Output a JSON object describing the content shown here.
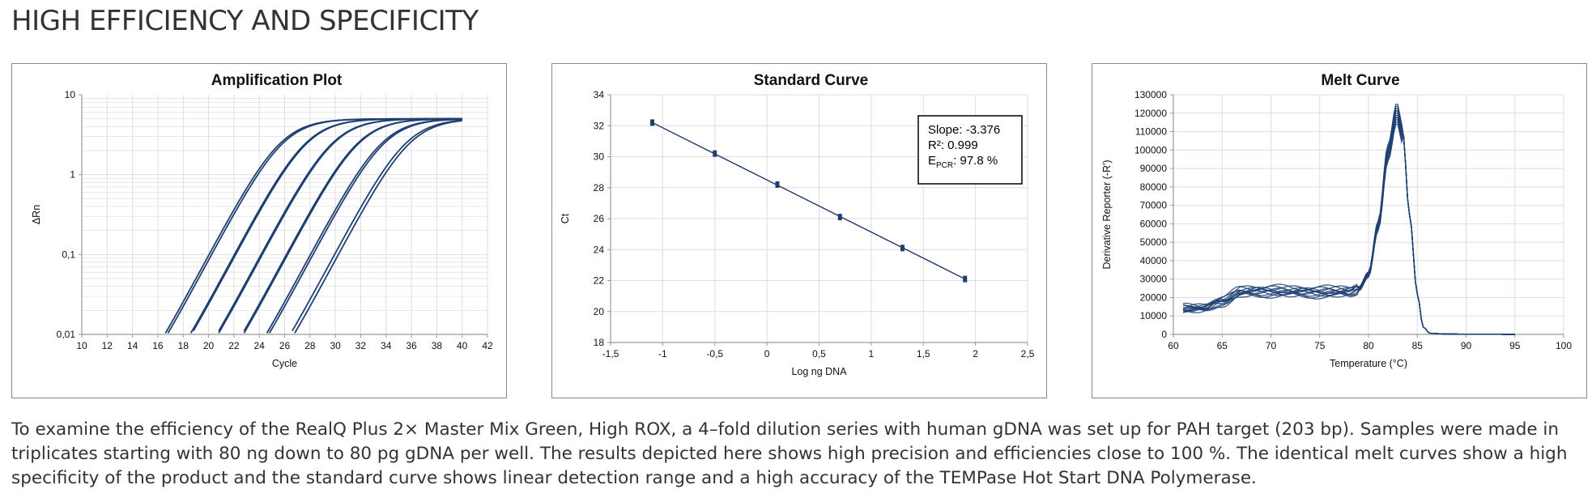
{
  "page": {
    "heading": "HIGH EFFICIENCY AND SPECIFICITY",
    "caption": "To examine the efficiency of the RealQ Plus 2× Master Mix Green, High ROX, a 4–fold dilution series with human gDNA was set up for PAH target (203 bp). Samples were made in triplicates starting with 80 ng down to 80 pg gDNA per well. The results depicted here shows high precision and efficiencies close to 100 %. The identical melt curves show a high specificity of the product and the standard curve shows linear detection range and a high accuracy of the TEMPase Hot Start DNA Polymerase."
  },
  "colors": {
    "series": "#1f3f73",
    "grid": "#dedede",
    "axis": "#9a9a9a",
    "border": "#8a8a8a"
  },
  "chart_data": [
    {
      "id": "amplification",
      "type": "line",
      "title": "Amplification  Plot",
      "xlabel": "Cycle",
      "ylabel": "ΔRn",
      "xlim": [
        10,
        42
      ],
      "ylim": [
        0.01,
        10
      ],
      "yscale": "log",
      "grid": true,
      "xticks": [
        10,
        12,
        14,
        16,
        18,
        20,
        22,
        24,
        26,
        28,
        30,
        32,
        34,
        36,
        38,
        40,
        42
      ],
      "xtick_labels": [
        "10",
        "12",
        "14",
        "16",
        "18",
        "20",
        "22",
        "24",
        "26",
        "28",
        "30",
        "32",
        "34",
        "36",
        "38",
        "40",
        "42"
      ],
      "yticks": [
        0.01,
        0.1,
        1,
        10
      ],
      "ytick_labels": [
        "0,01",
        "0,1",
        "1",
        "10"
      ],
      "plateau": 5.0,
      "x_end": 40,
      "series": [
        {
          "midpoint": 25.7
        },
        {
          "midpoint": 25.9
        },
        {
          "midpoint": 27.7
        },
        {
          "midpoint": 27.8
        },
        {
          "midpoint": 29.8
        },
        {
          "midpoint": 29.9
        },
        {
          "midpoint": 31.8
        },
        {
          "midpoint": 31.9
        },
        {
          "midpoint": 33.7
        },
        {
          "midpoint": 33.9
        },
        {
          "midpoint": 35.6
        },
        {
          "midpoint": 35.9
        }
      ]
    },
    {
      "id": "standard",
      "type": "scatter",
      "title": "Standard Curve",
      "xlabel": "Log ng DNA",
      "ylabel": "Ct",
      "xlim": [
        -1.5,
        2.5
      ],
      "ylim": [
        18,
        34
      ],
      "grid": true,
      "xticks": [
        -1.5,
        -1,
        -0.5,
        0,
        0.5,
        1,
        1.5,
        2,
        2.5
      ],
      "xtick_labels": [
        "-1,5",
        "-1",
        "-0,5",
        "0",
        "0,5",
        "1",
        "1,5",
        "2",
        "2,5"
      ],
      "yticks": [
        18,
        20,
        22,
        24,
        26,
        28,
        30,
        32,
        34
      ],
      "ytick_labels": [
        "18",
        "20",
        "22",
        "24",
        "26",
        "28",
        "30",
        "32",
        "34"
      ],
      "points": [
        {
          "x": -1.1,
          "y": 32.2
        },
        {
          "x": -0.5,
          "y": 30.2
        },
        {
          "x": 0.1,
          "y": 28.2
        },
        {
          "x": 0.7,
          "y": 26.1
        },
        {
          "x": 1.3,
          "y": 24.1
        },
        {
          "x": 1.9,
          "y": 22.1
        }
      ],
      "fit_line": {
        "x0": -1.1,
        "y0": 32.2,
        "x1": 1.9,
        "y1": 22.1
      },
      "annotation": {
        "slope": "Slope: -3.376",
        "r2": "R²: 0.999",
        "epcr_prefix": "E",
        "epcr_sub": "PCR",
        "epcr_suffix": ": 97.8 %"
      }
    },
    {
      "id": "melt",
      "type": "line",
      "title": "Melt Curve",
      "xlabel": "Temperature (°C)",
      "ylabel": "Derivative Reporter (-R')",
      "xlim": [
        60,
        100
      ],
      "ylim": [
        0,
        130000
      ],
      "grid": true,
      "xticks": [
        60,
        65,
        70,
        75,
        80,
        85,
        90,
        95,
        100
      ],
      "xtick_labels": [
        "60",
        "65",
        "70",
        "75",
        "80",
        "85",
        "90",
        "95",
        "100"
      ],
      "yticks": [
        0,
        10000,
        20000,
        30000,
        40000,
        50000,
        60000,
        70000,
        80000,
        90000,
        100000,
        110000,
        120000,
        130000
      ],
      "ytick_labels": [
        "0",
        "10000",
        "20000",
        "30000",
        "40000",
        "50000",
        "60000",
        "70000",
        "80000",
        "90000",
        "100000",
        "110000",
        "120000",
        "130000"
      ],
      "x_range": [
        61,
        95
      ],
      "peak_temp": 82.9,
      "base_series": [
        {
          "x": 61,
          "y": 14000
        },
        {
          "x": 63,
          "y": 14000
        },
        {
          "x": 65,
          "y": 18000
        },
        {
          "x": 67,
          "y": 23000
        },
        {
          "x": 70,
          "y": 23500
        },
        {
          "x": 73,
          "y": 23000
        },
        {
          "x": 76,
          "y": 23000
        },
        {
          "x": 78,
          "y": 23000
        },
        {
          "x": 79,
          "y": 25000
        },
        {
          "x": 80,
          "y": 33000
        },
        {
          "x": 81,
          "y": 60000
        },
        {
          "x": 82,
          "y": 100000
        },
        {
          "x": 82.9,
          "y": 122000
        },
        {
          "x": 83.5,
          "y": 110000
        },
        {
          "x": 84.2,
          "y": 65000
        },
        {
          "x": 85,
          "y": 22000
        },
        {
          "x": 85.6,
          "y": 4000
        },
        {
          "x": 86.3,
          "y": 600
        },
        {
          "x": 88,
          "y": 200
        },
        {
          "x": 92,
          "y": 100
        },
        {
          "x": 95,
          "y": 0
        }
      ],
      "replicate_scales": [
        1.0,
        0.97,
        1.02,
        0.95,
        0.99,
        1.01,
        0.96,
        0.98,
        1.0,
        0.94,
        0.97,
        1.03
      ]
    }
  ]
}
